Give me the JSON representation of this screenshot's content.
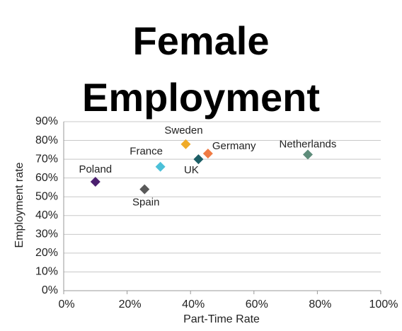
{
  "chart_data": {
    "type": "scatter",
    "title": "Female Employment",
    "x_label": "Part-Time Rate",
    "y_label": "Employment rate",
    "xlim": [
      0,
      100
    ],
    "ylim": [
      0,
      90
    ],
    "xticks": [
      {
        "value": 0,
        "label": "0%"
      },
      {
        "value": 20,
        "label": "20%"
      },
      {
        "value": 40,
        "label": "40%"
      },
      {
        "value": 60,
        "label": "60%"
      },
      {
        "value": 80,
        "label": "80%"
      },
      {
        "value": 100,
        "label": "100%"
      }
    ],
    "yticks": [
      {
        "value": 0,
        "label": "0%"
      },
      {
        "value": 10,
        "label": "10%"
      },
      {
        "value": 20,
        "label": "20%"
      },
      {
        "value": 30,
        "label": "30%"
      },
      {
        "value": 40,
        "label": "40%"
      },
      {
        "value": 50,
        "label": "50%"
      },
      {
        "value": 60,
        "label": "60%"
      },
      {
        "value": 70,
        "label": "70%"
      },
      {
        "value": 80,
        "label": "80%"
      },
      {
        "value": 90,
        "label": "90%"
      }
    ],
    "grid": true,
    "series": [
      {
        "name": "Poland",
        "color": "#4b1f6f",
        "x": [
          10
        ],
        "values": [
          58
        ]
      },
      {
        "name": "Spain",
        "color": "#595959",
        "x": [
          25.5
        ],
        "values": [
          54
        ]
      },
      {
        "name": "France",
        "color": "#4bc0d8",
        "x": [
          30.5
        ],
        "values": [
          66
        ]
      },
      {
        "name": "Sweden",
        "color": "#f0ab28",
        "x": [
          38.5
        ],
        "values": [
          78
        ]
      },
      {
        "name": "UK",
        "color": "#1c5e66",
        "x": [
          42.5
        ],
        "values": [
          70
        ]
      },
      {
        "name": "Germany",
        "color": "#f07b44",
        "x": [
          45.5
        ],
        "values": [
          73
        ]
      },
      {
        "name": "Netherlands",
        "color": "#5e8c7a",
        "x": [
          77
        ],
        "values": [
          72.5
        ]
      }
    ]
  }
}
